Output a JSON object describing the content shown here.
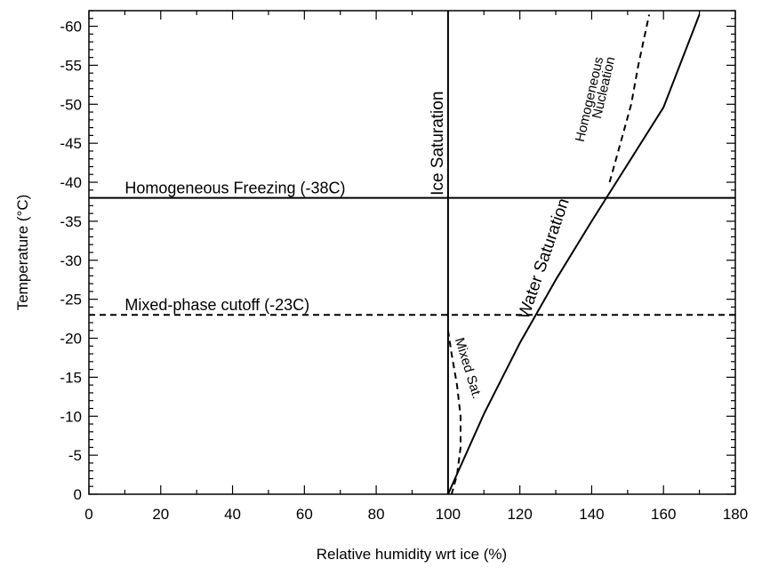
{
  "chart_data": {
    "type": "line",
    "title": "",
    "xlabel": "Relative humidity wrt ice (%)",
    "ylabel": "Temperature (°C)",
    "xlim": [
      0,
      180
    ],
    "ylim": [
      0,
      -62
    ],
    "y_inverted": true,
    "grid": false,
    "x_ticks": [
      0,
      20,
      40,
      60,
      80,
      100,
      120,
      140,
      160,
      180
    ],
    "y_ticks": [
      0,
      -5,
      -10,
      -15,
      -20,
      -25,
      -30,
      -35,
      -40,
      -45,
      -50,
      -55,
      -60
    ],
    "series": [
      {
        "name": "Ice Saturation",
        "style": "solid",
        "color": "#000000",
        "x": [
          100,
          100
        ],
        "y": [
          0,
          -62
        ]
      },
      {
        "name": "Water Saturation",
        "style": "solid",
        "color": "#000000",
        "x": [
          100,
          110,
          120,
          130,
          140,
          150,
          160,
          170
        ],
        "y": [
          0,
          -10.3,
          -19.4,
          -27.5,
          -35.0,
          -42.3,
          -49.6,
          -61.5
        ]
      },
      {
        "name": "Homogeneous Nucleation",
        "style": "dashed",
        "color": "#000000",
        "x": [
          145,
          148,
          151,
          153,
          156
        ],
        "y": [
          -40,
          -45,
          -50,
          -55,
          -61.5
        ]
      },
      {
        "name": "Mixed Sat.",
        "style": "dashed",
        "color": "#000000",
        "x": [
          100,
          101,
          102.5,
          103.5,
          103.5,
          102.5,
          101
        ],
        "y": [
          -21,
          -18,
          -14,
          -10,
          -6,
          -2.5,
          0
        ]
      },
      {
        "name": "Homogeneous Freezing (-38C)",
        "style": "solid",
        "color": "#000000",
        "x": [
          0,
          180
        ],
        "y": [
          -38,
          -38
        ]
      },
      {
        "name": "Mixed-phase cutoff (-23C)",
        "style": "dashed",
        "color": "#000000",
        "x": [
          0,
          180
        ],
        "y": [
          -23,
          -23
        ]
      }
    ],
    "annotations": [
      {
        "text": "Homogeneous Freezing (-38C)",
        "x": 10,
        "y": -38.6
      },
      {
        "text": "Mixed-phase cutoff (-23C)",
        "x": 10,
        "y": -23.6
      },
      {
        "text": "Ice Saturation",
        "x": 98.5,
        "y": -45,
        "rotate": -90
      },
      {
        "text": "Water Saturation",
        "x": 128,
        "y": -30,
        "rotate": -71
      },
      {
        "text": "Homogeneous",
        "x": 140.5,
        "y": -50.5,
        "rotate": -77
      },
      {
        "text": "Nucleation",
        "x": 144.5,
        "y": -52,
        "rotate": -77
      },
      {
        "text": "Mixed Sat.",
        "x": 104.5,
        "y": -16,
        "rotate": 73
      }
    ]
  }
}
